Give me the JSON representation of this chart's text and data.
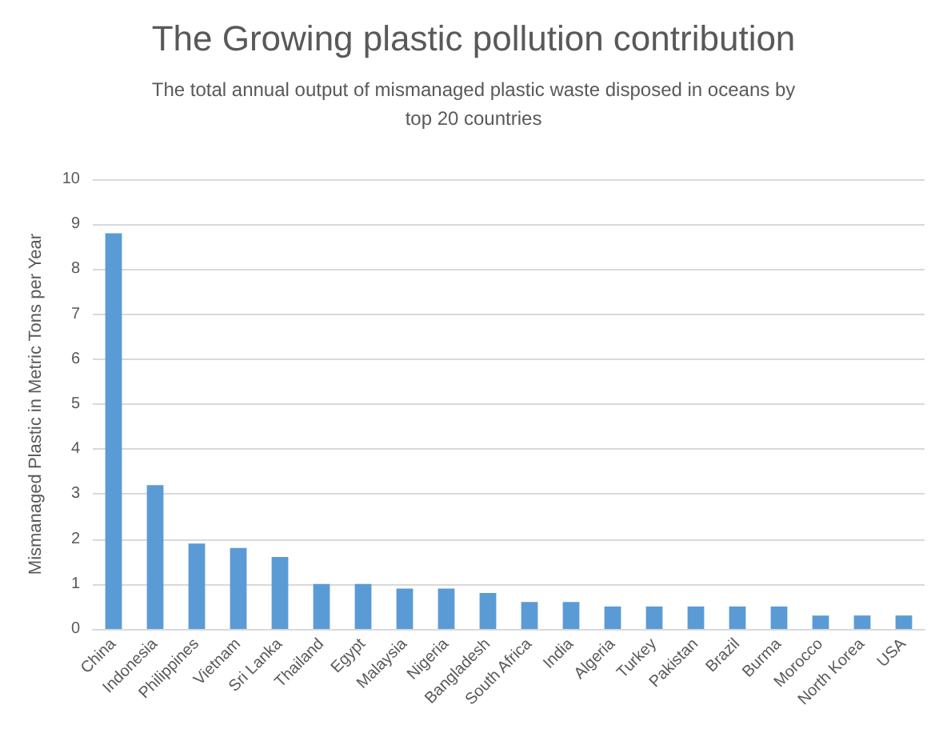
{
  "chart_data": {
    "type": "bar",
    "title": "The Growing plastic pollution contribution",
    "subtitle": "The total annual output of mismanaged plastic waste disposed in oceans by\ntop 20 countries",
    "ylabel": "Mismanaged Plastic in Metric Tons per Year",
    "categories": [
      "China",
      "Indonesia",
      "Philippines",
      "Vietnam",
      "Sri Lanka",
      "Thailand",
      "Egypt",
      "Malaysia",
      "Nigeria",
      "Bangladesh",
      "South Africa",
      "India",
      "Algeria",
      "Turkey",
      "Pakistan",
      "Brazil",
      "Burma",
      "Morocco",
      "North Korea",
      "USA"
    ],
    "values": [
      8.8,
      3.2,
      1.9,
      1.8,
      1.6,
      1.0,
      1.0,
      0.9,
      0.9,
      0.8,
      0.6,
      0.6,
      0.5,
      0.5,
      0.5,
      0.5,
      0.5,
      0.3,
      0.3,
      0.3
    ],
    "color": "#5b9bd5",
    "ylim": [
      0,
      10
    ],
    "yticks": [
      0,
      1,
      2,
      3,
      4,
      5,
      6,
      7,
      8,
      9,
      10
    ],
    "grid": "y"
  }
}
